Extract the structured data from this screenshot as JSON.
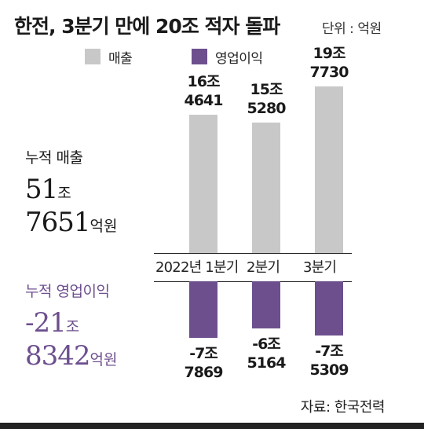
{
  "title": "한전, 3분기 만에 20조 적자 돌파",
  "unit_label": "단위 : 억원",
  "legend": [
    {
      "label": "매출",
      "color": "#c8c8c8"
    },
    {
      "label": "영업이익",
      "color": "#6d4f8e"
    }
  ],
  "summary": {
    "revenue": {
      "title": "누적 매출",
      "line1_num": "51",
      "line1_unit": "조",
      "line2_num": "7651",
      "line2_unit": "억원"
    },
    "profit": {
      "title": "누적 영업이익",
      "line1_num": "-21",
      "line1_unit": "조",
      "line2_num": "8342",
      "line2_unit": "억원"
    }
  },
  "chart_data": {
    "type": "bar",
    "categories": [
      "2022년 1분기",
      "2분기",
      "3분기"
    ],
    "series": [
      {
        "name": "매출",
        "values": [
          164641,
          155280,
          197730
        ],
        "labels": [
          [
            "16조",
            "4641"
          ],
          [
            "15조",
            "5280"
          ],
          [
            "19조",
            "7730"
          ]
        ]
      },
      {
        "name": "영업이익",
        "values": [
          -77869,
          -65164,
          -75309
        ],
        "labels": [
          [
            "-7조",
            "7869"
          ],
          [
            "-6조",
            "5164"
          ],
          [
            "-7조",
            "5309"
          ]
        ]
      }
    ],
    "colors": {
      "revenue": "#c8c8c8",
      "profit": "#6d4f8e"
    }
  },
  "source": "자료: 한국전력"
}
